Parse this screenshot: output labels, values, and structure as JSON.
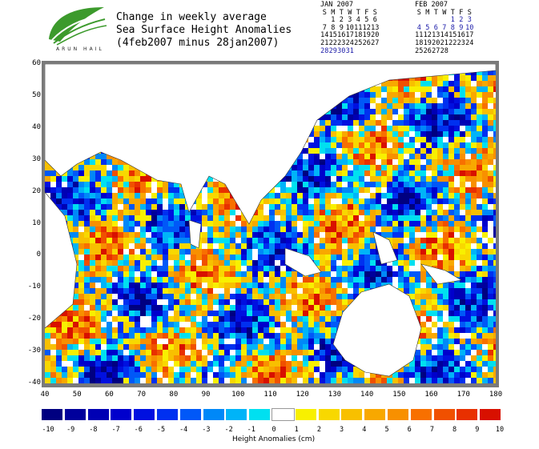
{
  "title_lines": [
    "Change in weekly average",
    "Sea Surface Height Anomalies",
    "(4feb2007 minus 28jan2007)"
  ],
  "logo_text": "ARUN HAIL",
  "calendar_jan": {
    "month": "JAN 2007",
    "days_header": [
      "S",
      "M",
      "T",
      "W",
      "T",
      "F",
      "S"
    ],
    "weeks": [
      [
        "",
        "1",
        "2",
        "3",
        "4",
        "5",
        "6"
      ],
      [
        "7",
        "8",
        "9",
        "10",
        "11",
        "12",
        "13"
      ],
      [
        "14",
        "15",
        "16",
        "17",
        "18",
        "19",
        "20"
      ],
      [
        "21",
        "22",
        "23",
        "24",
        "25",
        "26",
        "27"
      ],
      [
        "28",
        "29",
        "30",
        "31",
        "",
        "",
        ""
      ]
    ],
    "highlight": [
      "28",
      "29",
      "30",
      "31"
    ]
  },
  "calendar_feb": {
    "month": "FEB 2007",
    "days_header": [
      "S",
      "M",
      "T",
      "W",
      "T",
      "F",
      "S"
    ],
    "weeks": [
      [
        "",
        "",
        "",
        "",
        "1",
        "2",
        "3"
      ],
      [
        "4",
        "5",
        "6",
        "7",
        "8",
        "9",
        "10"
      ],
      [
        "11",
        "12",
        "13",
        "14",
        "15",
        "16",
        "17"
      ],
      [
        "18",
        "19",
        "20",
        "21",
        "22",
        "23",
        "24"
      ],
      [
        "25",
        "26",
        "27",
        "28",
        "",
        "",
        ""
      ]
    ],
    "highlight": [
      "1",
      "2",
      "3",
      "4",
      "5",
      "6",
      "7",
      "8",
      "9",
      "10"
    ]
  },
  "map": {
    "lon_ticks": [
      "40",
      "50",
      "60",
      "70",
      "80",
      "90",
      "100",
      "110",
      "120",
      "130",
      "140",
      "150",
      "160",
      "170",
      "180"
    ],
    "lat_ticks": [
      "60",
      "50",
      "40",
      "30",
      "20",
      "10",
      "0",
      "-10",
      "-20",
      "-30",
      "-40"
    ],
    "land_color": "#ffffff",
    "frame_color": "#7a7a7a"
  },
  "colorbar": {
    "title": "Height Anomalies (cm)",
    "labels": [
      "-10",
      "-9",
      "-8",
      "-7",
      "-6",
      "-5",
      "-4",
      "-3",
      "-2",
      "-1",
      "0",
      "1",
      "2",
      "3",
      "4",
      "5",
      "6",
      "7",
      "8",
      "9",
      "10"
    ],
    "colors": [
      "#000080",
      "#00009c",
      "#0000b4",
      "#0000cc",
      "#0010e0",
      "#0030f0",
      "#0058f8",
      "#0088f8",
      "#00b4f8",
      "#00e0f0",
      "#ffffff",
      "#f8f000",
      "#f8d800",
      "#f8c000",
      "#f8a800",
      "#f89000",
      "#f87000",
      "#f05000",
      "#e83000",
      "#d81000"
    ]
  }
}
